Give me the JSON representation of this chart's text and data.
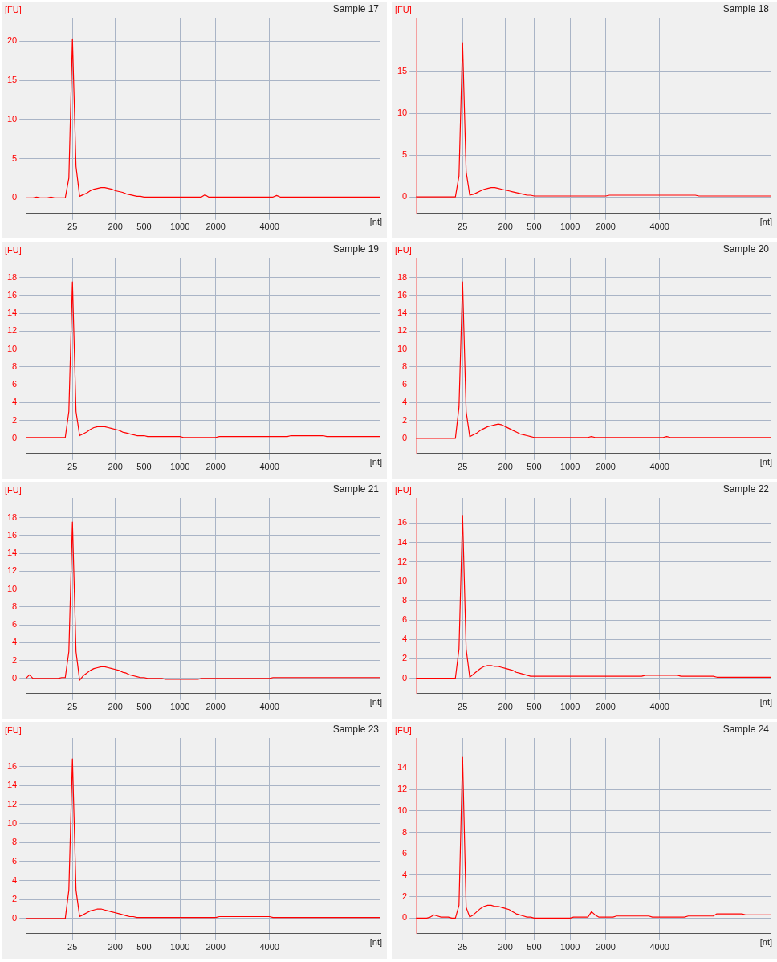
{
  "chart_data": [
    {
      "type": "line",
      "title": "Sample 17",
      "ylabel": "[FU]",
      "xlabel": "[nt]",
      "color": "#ff0000",
      "marker": "none",
      "line_style": "solid",
      "grid": true,
      "ylim": [
        -2,
        23
      ],
      "yticks": [
        0,
        5,
        10,
        15,
        20
      ],
      "categories": [
        null,
        null,
        null,
        null,
        null,
        null,
        null,
        null,
        null,
        null,
        null,
        null,
        null,
        "25",
        null,
        null,
        null,
        null,
        null,
        null,
        null,
        null,
        null,
        null,
        null,
        "200",
        null,
        null,
        null,
        null,
        null,
        null,
        null,
        "500",
        null,
        null,
        null,
        null,
        null,
        null,
        null,
        null,
        null,
        "1000",
        null,
        null,
        null,
        null,
        null,
        null,
        null,
        null,
        null,
        "2000",
        null,
        null,
        null,
        null,
        null,
        null,
        null,
        null,
        null,
        null,
        null,
        null,
        null,
        null,
        "4000",
        null,
        null,
        null,
        null,
        null,
        null,
        null,
        null,
        null,
        null,
        null,
        null,
        null,
        null,
        null,
        null,
        null,
        null,
        null,
        null,
        null,
        null,
        null,
        null,
        null,
        null,
        null,
        null,
        null,
        null,
        null
      ],
      "values": [
        0,
        0,
        0,
        0.1,
        0,
        0,
        0,
        0.1,
        0,
        0,
        0,
        0,
        2.5,
        20.3,
        4,
        0.2,
        0.4,
        0.6,
        0.9,
        1.1,
        1.2,
        1.3,
        1.3,
        1.2,
        1.1,
        0.9,
        0.8,
        0.7,
        0.5,
        0.4,
        0.3,
        0.2,
        0.2,
        0.1,
        0.1,
        0.1,
        0.1,
        0.1,
        0.1,
        0.1,
        0.1,
        0.1,
        0.1,
        0.1,
        0.1,
        0.1,
        0.1,
        0.1,
        0.1,
        0.1,
        0.4,
        0.1,
        0.1,
        0.1,
        0.1,
        0.1,
        0.1,
        0.1,
        0.1,
        0.1,
        0.1,
        0.1,
        0.1,
        0.1,
        0.1,
        0.1,
        0.1,
        0.1,
        0.1,
        0.1,
        0.3,
        0.1,
        0.1,
        0.1,
        0.1,
        0.1,
        0.1,
        0.1,
        0.1,
        0.1,
        0.1,
        0.1,
        0.1,
        0.1,
        0.1,
        0.1,
        0.1,
        0.1,
        0.1,
        0.1,
        0.1,
        0.1,
        0.1,
        0.1,
        0.1,
        0.1,
        0.1,
        0.1,
        0.1,
        0.1
      ]
    },
    {
      "type": "line",
      "title": "Sample 18",
      "ylabel": "[FU]",
      "xlabel": "[nt]",
      "color": "#ff0000",
      "marker": "none",
      "line_style": "solid",
      "grid": true,
      "ylim": [
        -2,
        21.5
      ],
      "yticks": [
        0,
        5,
        10,
        15
      ],
      "categories": [
        null,
        null,
        null,
        null,
        null,
        null,
        null,
        null,
        null,
        null,
        null,
        null,
        null,
        "25",
        null,
        null,
        null,
        null,
        null,
        null,
        null,
        null,
        null,
        null,
        null,
        "200",
        null,
        null,
        null,
        null,
        null,
        null,
        null,
        "500",
        null,
        null,
        null,
        null,
        null,
        null,
        null,
        null,
        null,
        "1000",
        null,
        null,
        null,
        null,
        null,
        null,
        null,
        null,
        null,
        "2000",
        null,
        null,
        null,
        null,
        null,
        null,
        null,
        null,
        null,
        null,
        null,
        null,
        null,
        null,
        "4000",
        null,
        null,
        null,
        null,
        null,
        null,
        null,
        null,
        null,
        null,
        null,
        null,
        null,
        null,
        null,
        null,
        null,
        null,
        null,
        null,
        null,
        null,
        null,
        null,
        null,
        null,
        null,
        null,
        null,
        null,
        null
      ],
      "values": [
        0,
        0,
        0,
        0,
        0,
        0,
        0,
        0,
        0,
        0,
        0,
        0,
        2.5,
        18.5,
        3,
        0.2,
        0.3,
        0.5,
        0.7,
        0.9,
        1.0,
        1.1,
        1.1,
        1.0,
        0.9,
        0.8,
        0.7,
        0.6,
        0.5,
        0.4,
        0.3,
        0.2,
        0.2,
        0.1,
        0.1,
        0.1,
        0.1,
        0.1,
        0.1,
        0.1,
        0.1,
        0.1,
        0.1,
        0.1,
        0.1,
        0.1,
        0.1,
        0.1,
        0.1,
        0.1,
        0.1,
        0.1,
        0.1,
        0.1,
        0.2,
        0.2,
        0.2,
        0.2,
        0.2,
        0.2,
        0.2,
        0.2,
        0.2,
        0.2,
        0.2,
        0.2,
        0.2,
        0.2,
        0.2,
        0.2,
        0.2,
        0.2,
        0.2,
        0.2,
        0.2,
        0.2,
        0.2,
        0.2,
        0.2,
        0.1,
        0.1,
        0.1,
        0.1,
        0.1,
        0.1,
        0.1,
        0.1,
        0.1,
        0.1,
        0.1,
        0.1,
        0.1,
        0.1,
        0.1,
        0.1,
        0.1,
        0.1,
        0.1,
        0.1,
        0.1
      ]
    },
    {
      "type": "line",
      "title": "Sample 19",
      "ylabel": "[FU]",
      "xlabel": "[nt]",
      "color": "#ff0000",
      "marker": "none",
      "line_style": "solid",
      "grid": true,
      "ylim": [
        -1.7,
        20.2
      ],
      "yticks": [
        0,
        2,
        4,
        6,
        8,
        10,
        12,
        14,
        16,
        18
      ],
      "categories": [
        null,
        null,
        null,
        null,
        null,
        null,
        null,
        null,
        null,
        null,
        null,
        null,
        null,
        "25",
        null,
        null,
        null,
        null,
        null,
        null,
        null,
        null,
        null,
        null,
        null,
        "200",
        null,
        null,
        null,
        null,
        null,
        null,
        null,
        "500",
        null,
        null,
        null,
        null,
        null,
        null,
        null,
        null,
        null,
        "1000",
        null,
        null,
        null,
        null,
        null,
        null,
        null,
        null,
        null,
        "2000",
        null,
        null,
        null,
        null,
        null,
        null,
        null,
        null,
        null,
        null,
        null,
        null,
        null,
        null,
        "4000",
        null,
        null,
        null,
        null,
        null,
        null,
        null,
        null,
        null,
        null,
        null,
        null,
        null,
        null,
        null,
        null,
        null,
        null,
        null,
        null,
        null,
        null,
        null,
        null,
        null,
        null,
        null,
        null,
        null,
        null,
        null
      ],
      "values": [
        0.1,
        0.1,
        0.1,
        0.1,
        0.1,
        0.1,
        0.1,
        0.1,
        0.1,
        0.1,
        0.1,
        0.1,
        3,
        17.5,
        3,
        0.3,
        0.5,
        0.7,
        1.0,
        1.2,
        1.3,
        1.3,
        1.3,
        1.2,
        1.1,
        1.0,
        0.9,
        0.7,
        0.6,
        0.5,
        0.4,
        0.3,
        0.3,
        0.3,
        0.2,
        0.2,
        0.2,
        0.2,
        0.2,
        0.2,
        0.2,
        0.2,
        0.2,
        0.2,
        0.1,
        0.1,
        0.1,
        0.1,
        0.1,
        0.1,
        0.1,
        0.1,
        0.1,
        0.1,
        0.2,
        0.2,
        0.2,
        0.2,
        0.2,
        0.2,
        0.2,
        0.2,
        0.2,
        0.2,
        0.2,
        0.2,
        0.2,
        0.2,
        0.2,
        0.2,
        0.2,
        0.2,
        0.2,
        0.2,
        0.3,
        0.3,
        0.3,
        0.3,
        0.3,
        0.3,
        0.3,
        0.3,
        0.3,
        0.3,
        0.2,
        0.2,
        0.2,
        0.2,
        0.2,
        0.2,
        0.2,
        0.2,
        0.2,
        0.2,
        0.2,
        0.2,
        0.2,
        0.2,
        0.2,
        0.2
      ]
    },
    {
      "type": "line",
      "title": "Sample 20",
      "ylabel": "[FU]",
      "xlabel": "[nt]",
      "color": "#ff0000",
      "marker": "none",
      "line_style": "solid",
      "grid": true,
      "ylim": [
        -1.7,
        20.2
      ],
      "yticks": [
        0,
        2,
        4,
        6,
        8,
        10,
        12,
        14,
        16,
        18
      ],
      "categories": [
        null,
        null,
        null,
        null,
        null,
        null,
        null,
        null,
        null,
        null,
        null,
        null,
        null,
        "25",
        null,
        null,
        null,
        null,
        null,
        null,
        null,
        null,
        null,
        null,
        null,
        "200",
        null,
        null,
        null,
        null,
        null,
        null,
        null,
        "500",
        null,
        null,
        null,
        null,
        null,
        null,
        null,
        null,
        null,
        "1000",
        null,
        null,
        null,
        null,
        null,
        null,
        null,
        null,
        null,
        "2000",
        null,
        null,
        null,
        null,
        null,
        null,
        null,
        null,
        null,
        null,
        null,
        null,
        null,
        null,
        "4000",
        null,
        null,
        null,
        null,
        null,
        null,
        null,
        null,
        null,
        null,
        null,
        null,
        null,
        null,
        null,
        null,
        null,
        null,
        null,
        null,
        null,
        null,
        null,
        null,
        null,
        null,
        null,
        null,
        null,
        null,
        null
      ],
      "values": [
        0,
        0,
        0,
        0,
        0,
        0,
        0,
        0,
        0,
        0,
        0,
        0,
        3.5,
        17.5,
        3,
        0.2,
        0.4,
        0.6,
        0.9,
        1.1,
        1.3,
        1.4,
        1.5,
        1.6,
        1.5,
        1.3,
        1.1,
        0.9,
        0.7,
        0.5,
        0.4,
        0.3,
        0.2,
        0.1,
        0.1,
        0.1,
        0.1,
        0.1,
        0.1,
        0.1,
        0.1,
        0.1,
        0.1,
        0.1,
        0.1,
        0.1,
        0.1,
        0.1,
        0.1,
        0.2,
        0.1,
        0.1,
        0.1,
        0.1,
        0.1,
        0.1,
        0.1,
        0.1,
        0.1,
        0.1,
        0.1,
        0.1,
        0.1,
        0.1,
        0.1,
        0.1,
        0.1,
        0.1,
        0.1,
        0.1,
        0.2,
        0.1,
        0.1,
        0.1,
        0.1,
        0.1,
        0.1,
        0.1,
        0.1,
        0.1,
        0.1,
        0.1,
        0.1,
        0.1,
        0.1,
        0.1,
        0.1,
        0.1,
        0.1,
        0.1,
        0.1,
        0.1,
        0.1,
        0.1,
        0.1,
        0.1,
        0.1,
        0.1,
        0.1,
        0.1
      ]
    },
    {
      "type": "line",
      "title": "Sample 21",
      "ylabel": "[FU]",
      "xlabel": "[nt]",
      "color": "#ff0000",
      "marker": "none",
      "line_style": "solid",
      "grid": true,
      "ylim": [
        -1.7,
        20.2
      ],
      "yticks": [
        0,
        2,
        4,
        6,
        8,
        10,
        12,
        14,
        16,
        18
      ],
      "categories": [
        null,
        null,
        null,
        null,
        null,
        null,
        null,
        null,
        null,
        null,
        null,
        null,
        null,
        "25",
        null,
        null,
        null,
        null,
        null,
        null,
        null,
        null,
        null,
        null,
        null,
        "200",
        null,
        null,
        null,
        null,
        null,
        null,
        null,
        "500",
        null,
        null,
        null,
        null,
        null,
        null,
        null,
        null,
        null,
        "1000",
        null,
        null,
        null,
        null,
        null,
        null,
        null,
        null,
        null,
        "2000",
        null,
        null,
        null,
        null,
        null,
        null,
        null,
        null,
        null,
        null,
        null,
        null,
        null,
        null,
        "4000",
        null,
        null,
        null,
        null,
        null,
        null,
        null,
        null,
        null,
        null,
        null,
        null,
        null,
        null,
        null,
        null,
        null,
        null,
        null,
        null,
        null,
        null,
        null,
        null,
        null,
        null,
        null,
        null,
        null,
        null,
        null
      ],
      "values": [
        0,
        0.4,
        0,
        0,
        0,
        0,
        0,
        0,
        0,
        0,
        0.1,
        0.1,
        3,
        17.5,
        3,
        -0.2,
        0.3,
        0.6,
        0.9,
        1.1,
        1.2,
        1.3,
        1.3,
        1.2,
        1.1,
        1.0,
        0.9,
        0.7,
        0.6,
        0.4,
        0.3,
        0.2,
        0.1,
        0.1,
        0,
        0,
        0,
        0,
        0,
        -0.1,
        -0.1,
        -0.1,
        -0.1,
        -0.1,
        -0.1,
        -0.1,
        -0.1,
        -0.1,
        -0.1,
        0,
        0,
        0,
        0,
        0,
        0,
        0,
        0,
        0,
        0,
        0,
        0,
        0,
        0,
        0,
        0,
        0,
        0,
        0,
        0,
        0.1,
        0.1,
        0.1,
        0.1,
        0.1,
        0.1,
        0.1,
        0.1,
        0.1,
        0.1,
        0.1,
        0.1,
        0.1,
        0.1,
        0.1,
        0.1,
        0.1,
        0.1,
        0.1,
        0.1,
        0.1,
        0.1,
        0.1,
        0.1,
        0.1,
        0.1,
        0.1,
        0.1,
        0.1,
        0.1,
        0.1
      ]
    },
    {
      "type": "line",
      "title": "Sample 22",
      "ylabel": "[FU]",
      "xlabel": "[nt]",
      "color": "#ff0000",
      "marker": "none",
      "line_style": "solid",
      "grid": true,
      "ylim": [
        -1.6,
        18.6
      ],
      "yticks": [
        0,
        2,
        4,
        6,
        8,
        10,
        12,
        14,
        16
      ],
      "categories": [
        null,
        null,
        null,
        null,
        null,
        null,
        null,
        null,
        null,
        null,
        null,
        null,
        null,
        "25",
        null,
        null,
        null,
        null,
        null,
        null,
        null,
        null,
        null,
        null,
        null,
        "200",
        null,
        null,
        null,
        null,
        null,
        null,
        null,
        "500",
        null,
        null,
        null,
        null,
        null,
        null,
        null,
        null,
        null,
        "1000",
        null,
        null,
        null,
        null,
        null,
        null,
        null,
        null,
        null,
        "2000",
        null,
        null,
        null,
        null,
        null,
        null,
        null,
        null,
        null,
        null,
        null,
        null,
        null,
        null,
        "4000",
        null,
        null,
        null,
        null,
        null,
        null,
        null,
        null,
        null,
        null,
        null,
        null,
        null,
        null,
        null,
        null,
        null,
        null,
        null,
        null,
        null,
        null,
        null,
        null,
        null,
        null,
        null,
        null,
        null,
        null,
        null
      ],
      "values": [
        0,
        0,
        0,
        0,
        0,
        0,
        0,
        0,
        0,
        0,
        0,
        0,
        3,
        16.8,
        3,
        0.1,
        0.4,
        0.7,
        1.0,
        1.2,
        1.3,
        1.3,
        1.2,
        1.2,
        1.1,
        1.0,
        0.9,
        0.8,
        0.6,
        0.5,
        0.4,
        0.3,
        0.2,
        0.2,
        0.2,
        0.2,
        0.2,
        0.2,
        0.2,
        0.2,
        0.2,
        0.2,
        0.2,
        0.2,
        0.2,
        0.2,
        0.2,
        0.2,
        0.2,
        0.2,
        0.2,
        0.2,
        0.2,
        0.2,
        0.2,
        0.2,
        0.2,
        0.2,
        0.2,
        0.2,
        0.2,
        0.2,
        0.2,
        0.2,
        0.3,
        0.3,
        0.3,
        0.3,
        0.3,
        0.3,
        0.3,
        0.3,
        0.3,
        0.3,
        0.2,
        0.2,
        0.2,
        0.2,
        0.2,
        0.2,
        0.2,
        0.2,
        0.2,
        0.2,
        0.1,
        0.1,
        0.1,
        0.1,
        0.1,
        0.1,
        0.1,
        0.1,
        0.1,
        0.1,
        0.1,
        0.1,
        0.1,
        0.1,
        0.1,
        0.1
      ]
    },
    {
      "type": "line",
      "title": "Sample 23",
      "ylabel": "[FU]",
      "xlabel": "[nt]",
      "color": "#ff0000",
      "marker": "none",
      "line_style": "solid",
      "grid": true,
      "ylim": [
        -1.6,
        19
      ],
      "yticks": [
        0,
        2,
        4,
        6,
        8,
        10,
        12,
        14,
        16
      ],
      "categories": [
        null,
        null,
        null,
        null,
        null,
        null,
        null,
        null,
        null,
        null,
        null,
        null,
        null,
        "25",
        null,
        null,
        null,
        null,
        null,
        null,
        null,
        null,
        null,
        null,
        null,
        "200",
        null,
        null,
        null,
        null,
        null,
        null,
        null,
        "500",
        null,
        null,
        null,
        null,
        null,
        null,
        null,
        null,
        null,
        "1000",
        null,
        null,
        null,
        null,
        null,
        null,
        null,
        null,
        null,
        "2000",
        null,
        null,
        null,
        null,
        null,
        null,
        null,
        null,
        null,
        null,
        null,
        null,
        null,
        null,
        "4000",
        null,
        null,
        null,
        null,
        null,
        null,
        null,
        null,
        null,
        null,
        null,
        null,
        null,
        null,
        null,
        null,
        null,
        null,
        null,
        null,
        null,
        null,
        null,
        null,
        null,
        null,
        null,
        null,
        null,
        null,
        null
      ],
      "values": [
        0,
        0,
        0,
        0,
        0,
        0,
        0,
        0,
        0,
        0,
        0,
        0,
        3,
        16.8,
        3,
        0.2,
        0.4,
        0.6,
        0.8,
        0.9,
        1.0,
        1.0,
        0.9,
        0.8,
        0.7,
        0.6,
        0.5,
        0.4,
        0.3,
        0.2,
        0.2,
        0.1,
        0.1,
        0.1,
        0.1,
        0.1,
        0.1,
        0.1,
        0.1,
        0.1,
        0.1,
        0.1,
        0.1,
        0.1,
        0.1,
        0.1,
        0.1,
        0.1,
        0.1,
        0.1,
        0.1,
        0.1,
        0.1,
        0.1,
        0.2,
        0.2,
        0.2,
        0.2,
        0.2,
        0.2,
        0.2,
        0.2,
        0.2,
        0.2,
        0.2,
        0.2,
        0.2,
        0.2,
        0.2,
        0.1,
        0.1,
        0.1,
        0.1,
        0.1,
        0.1,
        0.1,
        0.1,
        0.1,
        0.1,
        0.1,
        0.1,
        0.1,
        0.1,
        0.1,
        0.1,
        0.1,
        0.1,
        0.1,
        0.1,
        0.1,
        0.1,
        0.1,
        0.1,
        0.1,
        0.1,
        0.1,
        0.1,
        0.1,
        0.1,
        0.1
      ]
    },
    {
      "type": "line",
      "title": "Sample 24",
      "ylabel": "[FU]",
      "xlabel": "[nt]",
      "color": "#ff0000",
      "marker": "none",
      "line_style": "solid",
      "grid": true,
      "ylim": [
        -1.45,
        16.8
      ],
      "yticks": [
        0,
        2,
        4,
        6,
        8,
        10,
        12,
        14
      ],
      "categories": [
        null,
        null,
        null,
        null,
        null,
        null,
        null,
        null,
        null,
        null,
        null,
        null,
        null,
        "25",
        null,
        null,
        null,
        null,
        null,
        null,
        null,
        null,
        null,
        null,
        null,
        "200",
        null,
        null,
        null,
        null,
        null,
        null,
        null,
        "500",
        null,
        null,
        null,
        null,
        null,
        null,
        null,
        null,
        null,
        "1000",
        null,
        null,
        null,
        null,
        null,
        null,
        null,
        null,
        null,
        "2000",
        null,
        null,
        null,
        null,
        null,
        null,
        null,
        null,
        null,
        null,
        null,
        null,
        null,
        null,
        "4000",
        null,
        null,
        null,
        null,
        null,
        null,
        null,
        null,
        null,
        null,
        null,
        null,
        null,
        null,
        null,
        null,
        null,
        null,
        null,
        null,
        null,
        null,
        null,
        null,
        null,
        null,
        null,
        null,
        null,
        null,
        null
      ],
      "values": [
        0,
        0,
        0,
        0,
        0.1,
        0.3,
        0.2,
        0.1,
        0.1,
        0.1,
        0,
        0,
        1.2,
        15,
        1,
        0.1,
        0.3,
        0.6,
        0.9,
        1.1,
        1.2,
        1.2,
        1.1,
        1.1,
        1.0,
        0.9,
        0.8,
        0.6,
        0.4,
        0.3,
        0.2,
        0.1,
        0.1,
        0,
        0,
        0,
        0,
        0,
        0,
        0,
        0,
        0,
        0,
        0,
        0.1,
        0.1,
        0.1,
        0.1,
        0.1,
        0.6,
        0.3,
        0.1,
        0.1,
        0.1,
        0.1,
        0.1,
        0.2,
        0.2,
        0.2,
        0.2,
        0.2,
        0.2,
        0.2,
        0.2,
        0.2,
        0.2,
        0.1,
        0.1,
        0.1,
        0.1,
        0.1,
        0.1,
        0.1,
        0.1,
        0.1,
        0.1,
        0.2,
        0.2,
        0.2,
        0.2,
        0.2,
        0.2,
        0.2,
        0.2,
        0.4,
        0.4,
        0.4,
        0.4,
        0.4,
        0.4,
        0.4,
        0.4,
        0.3,
        0.3,
        0.3,
        0.3,
        0.3,
        0.3,
        0.3,
        0.3
      ]
    }
  ]
}
